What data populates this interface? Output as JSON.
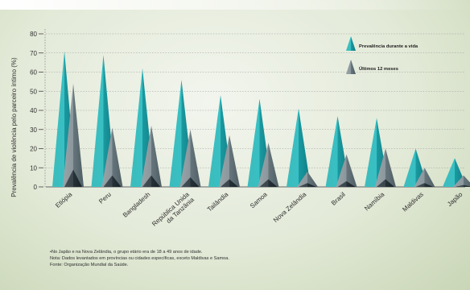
{
  "chart_data": {
    "type": "area",
    "ylabel": "Prevalência de violência pelo parceiro íntimo (%)",
    "ylim": [
      0,
      80
    ],
    "yticks": [
      0,
      10,
      20,
      30,
      40,
      50,
      60,
      70,
      80
    ],
    "grid": true,
    "legend_position": "top-right",
    "categories": [
      "Etiópia",
      "Peru",
      "Bangladesh",
      "República Unida da Tanzânia",
      "Tailândia",
      "Samoa",
      "Nova Zelândia",
      "Brasil",
      "Namíbia",
      "Maldivas",
      "Japão"
    ],
    "category_label_lines": [
      [
        "Etiópia"
      ],
      [
        "Peru"
      ],
      [
        "Bangladesh"
      ],
      [
        "República Unida",
        "da Tanzânia"
      ],
      [
        "Tailândia"
      ],
      [
        "Samoa"
      ],
      [
        "Nova Zelândia"
      ],
      [
        "Brasil"
      ],
      [
        "Namíbia"
      ],
      [
        "Maldivas"
      ],
      [
        "Japão"
      ]
    ],
    "series": [
      {
        "name": "Prevalência durante a vida",
        "values": [
          71,
          69,
          62,
          56,
          48,
          46,
          41,
          37,
          36,
          20,
          15
        ],
        "color": "#2fb4b8"
      },
      {
        "name": "Últimos 12 meses",
        "values": [
          54,
          31,
          32,
          30,
          27,
          23,
          8,
          17,
          20,
          10,
          6
        ],
        "color": "#7d8c92"
      }
    ],
    "unlabeled_inner_values": [
      9,
      6,
      6,
      5,
      4,
      4,
      2,
      3,
      4,
      2,
      1
    ],
    "colors": {
      "inner": "#2b363b",
      "axis": "#555555"
    }
  },
  "notes": [
    "•No Japão e na Nova Zelândia, o grupo etário era de 18 a 49 anos de idade.",
    "Nota: Dados levantados em províncias ou cidades específicas, exceto Maldivas e Samoa.",
    "Fonte: Organização Mundial da Saúde."
  ]
}
